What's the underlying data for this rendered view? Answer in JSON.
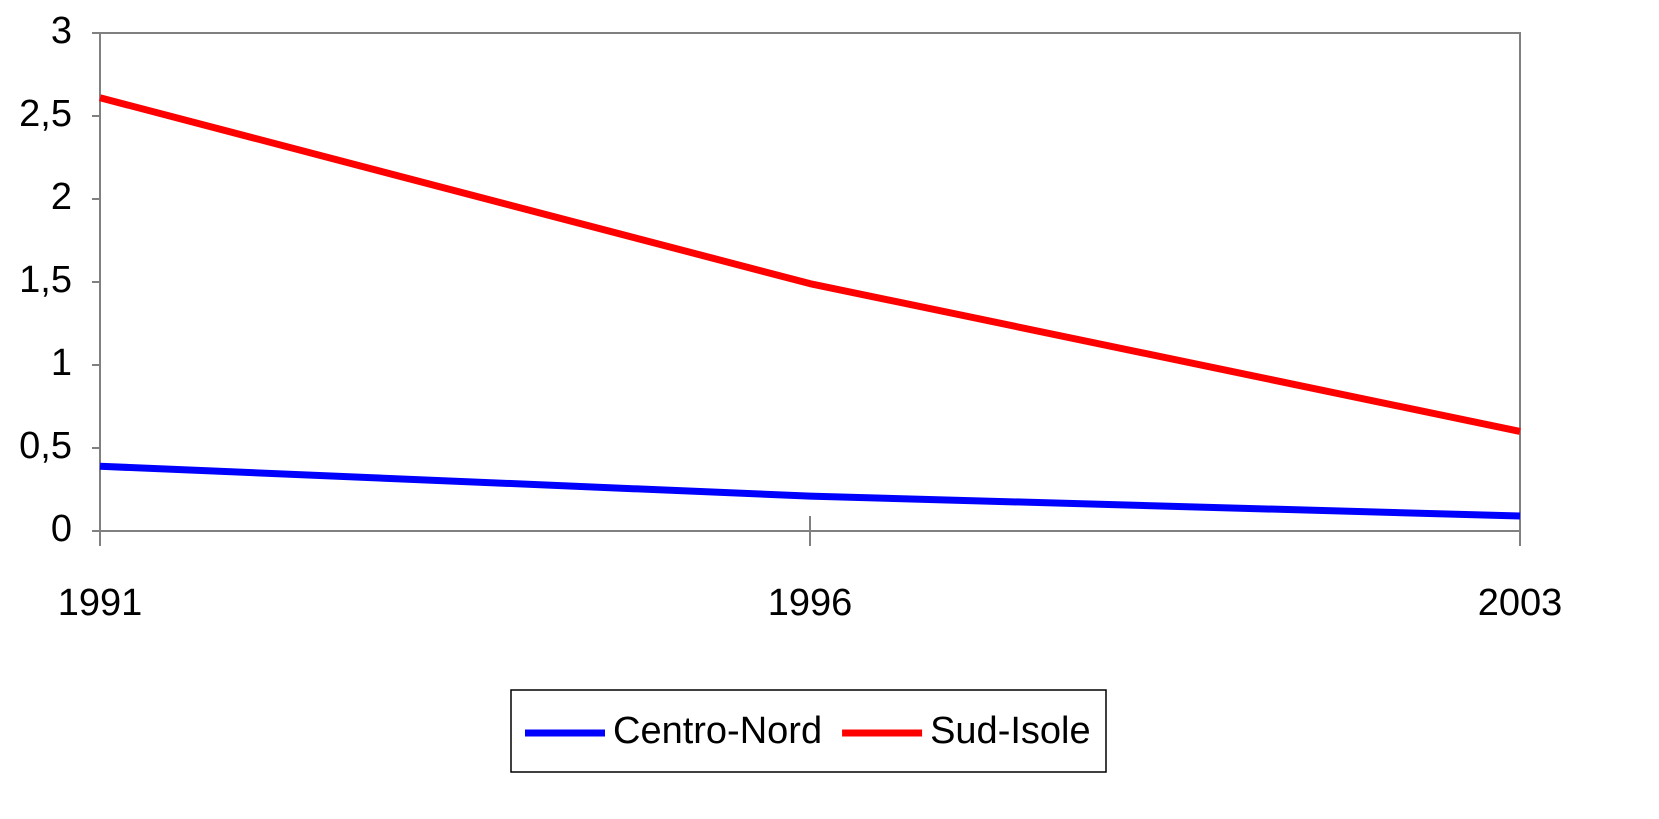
{
  "chart_data": {
    "type": "line",
    "categories": [
      "1991",
      "1996",
      "2003"
    ],
    "series": [
      {
        "name": "Centro-Nord",
        "color": "#0000ff",
        "values": [
          0.39,
          0.21,
          0.09
        ]
      },
      {
        "name": "Sud-Isole",
        "color": "#ff0000",
        "values": [
          2.61,
          1.49,
          0.6
        ]
      }
    ],
    "ylim": [
      0,
      3
    ],
    "yticks": [
      0,
      {
        "value": 0.5,
        "label": "0,5"
      },
      1,
      {
        "value": 1.5,
        "label": "1,5"
      },
      2,
      {
        "value": 2.5,
        "label": "2,5"
      },
      3
    ],
    "legend": "bottom"
  }
}
